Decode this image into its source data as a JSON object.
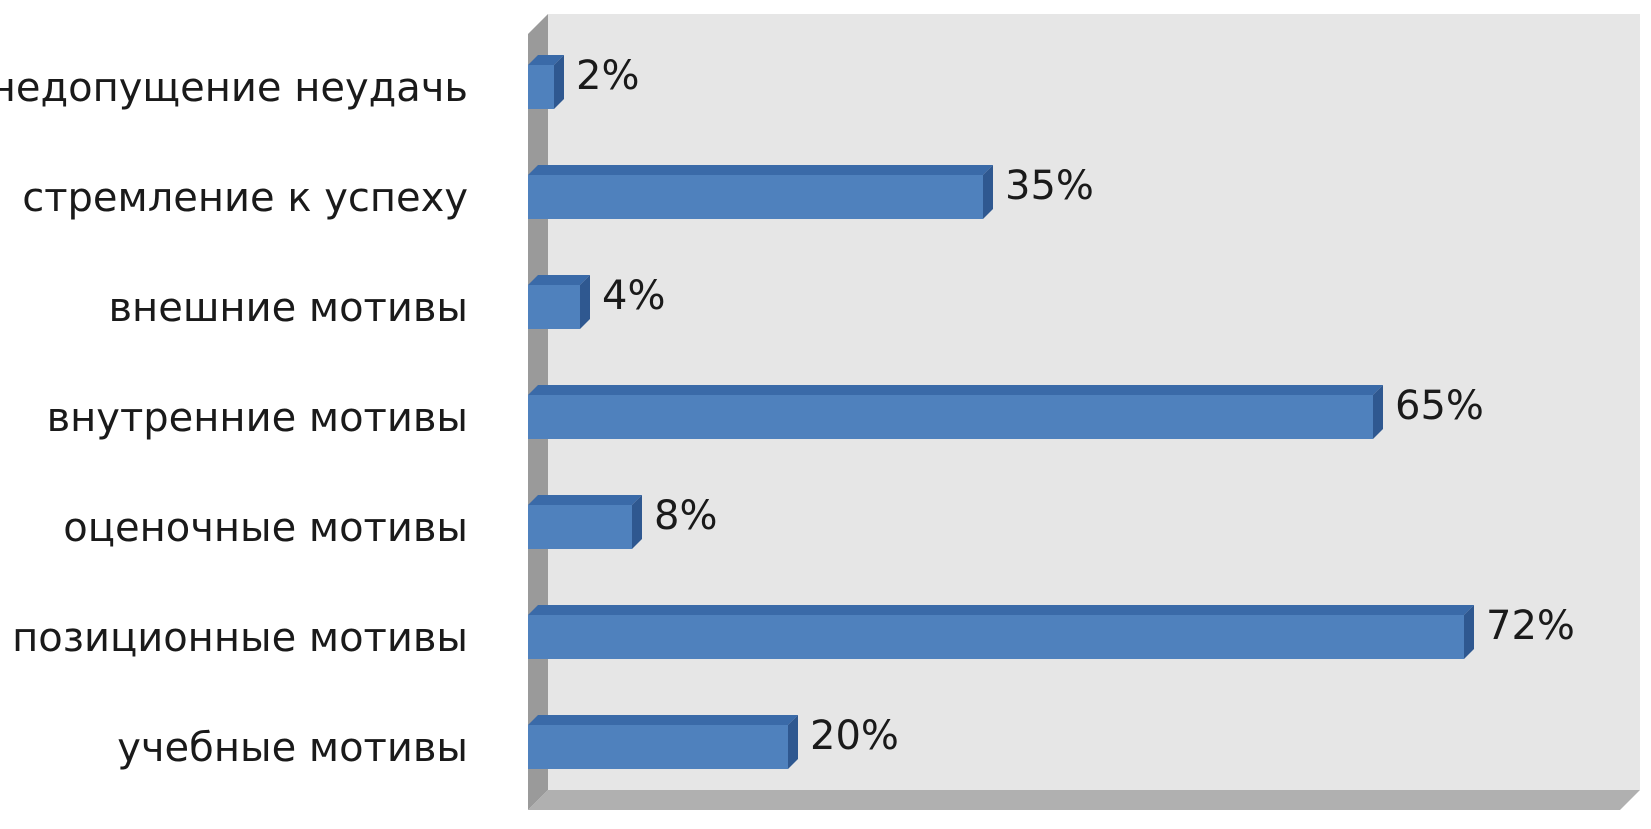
{
  "chart_data": {
    "type": "bar",
    "orientation": "horizontal",
    "style": "3d",
    "categories": [
      "недопущение неудачь",
      "стремление к успеху",
      "внешние мотивы",
      "внутренние мотивы",
      "оценочные мотивы",
      "позиционные мотивы",
      "учебные мотивы"
    ],
    "values": [
      2,
      35,
      4,
      65,
      8,
      72,
      20
    ],
    "value_labels": [
      "2%",
      "35%",
      "4%",
      "65%",
      "8%",
      "72%",
      "20%"
    ],
    "unit": "%",
    "xlim": [
      0,
      80
    ],
    "grid": false,
    "legend": "none",
    "colors": {
      "bar_front": "#4f81bd",
      "bar_top": "#3a6aa8",
      "bar_side": "#2f5890",
      "wall_back": "#e6e6e6",
      "wall_left": "#9a9a9a",
      "floor": "#b0b0b0"
    }
  }
}
